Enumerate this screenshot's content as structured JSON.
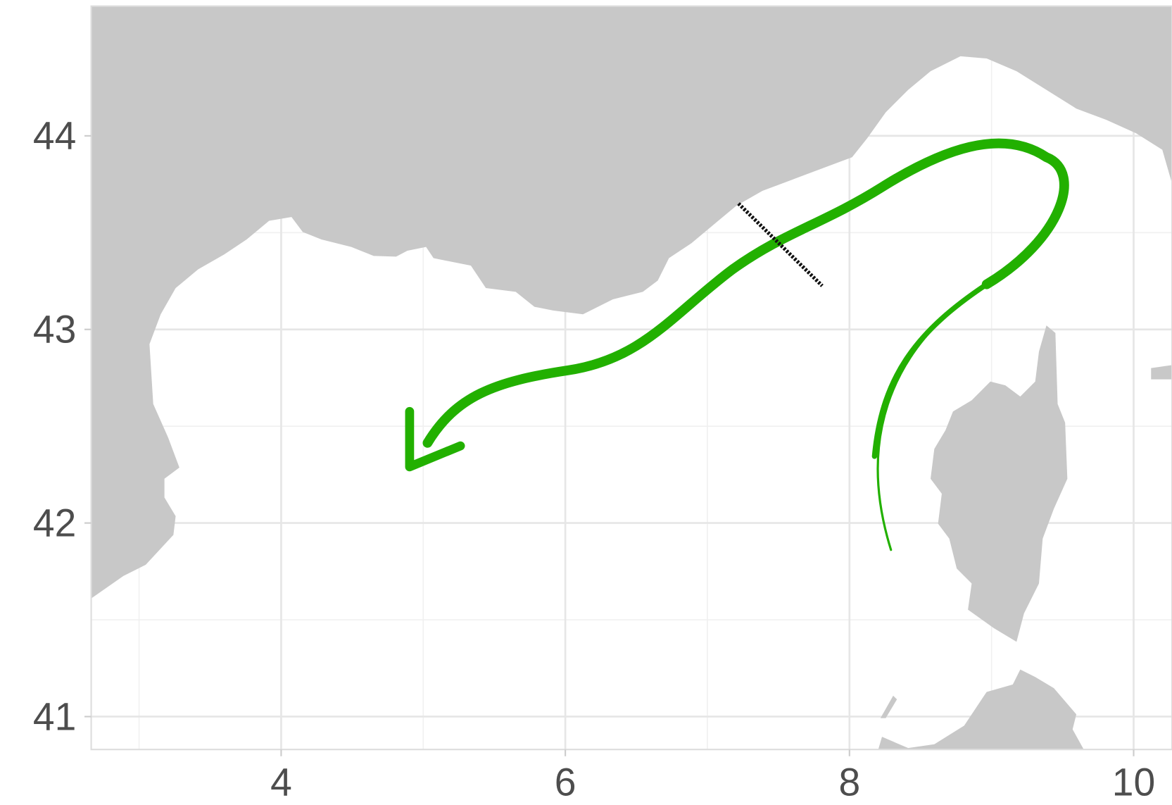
{
  "chart_data": {
    "type": "map",
    "xlim": [
      2.663,
      10.27
    ],
    "xticks": [
      4,
      6,
      8,
      10
    ],
    "x_minor_grid": [
      3,
      5,
      7,
      9
    ],
    "ylim": [
      40.83,
      44.67
    ],
    "yticks": [
      41,
      42,
      43,
      44
    ],
    "y_minor_grid": [
      41.5,
      42.5,
      43.5
    ],
    "grid": true,
    "land_color": "#c8c8c8",
    "track_color": "#22b000",
    "transect_color": "#111111"
  }
}
